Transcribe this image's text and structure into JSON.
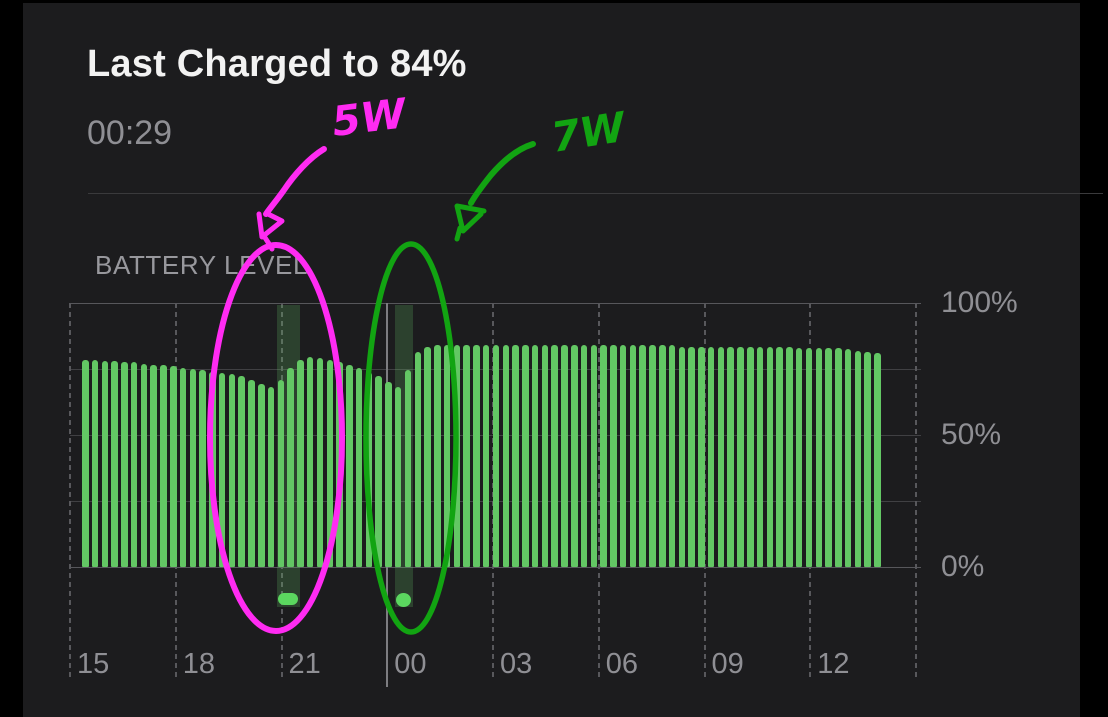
{
  "header": {
    "title": "Last Charged to 84%",
    "subtitle": "00:29"
  },
  "chart_data": {
    "type": "bar",
    "title": "BATTERY LEVEL",
    "unit": "%",
    "ylim": [
      0,
      100
    ],
    "grid": "on",
    "y_axis_labels": [
      "100%",
      "50%",
      "0%"
    ],
    "y_axis_values": [
      100,
      50,
      0
    ],
    "y_gridline_values": [
      100,
      75,
      50,
      25,
      0
    ],
    "x_axis_labels": [
      "15",
      "18",
      "21",
      "00",
      "03",
      "06",
      "09",
      "12"
    ],
    "x_start_hour": 15,
    "hours_span": 24,
    "bar_interval_minutes": 17,
    "values": [
      78.5,
      78.5,
      78,
      78,
      77.5,
      77.5,
      77,
      76.5,
      76.5,
      76,
      75.5,
      75,
      74.5,
      74,
      73.5,
      73,
      72.5,
      71,
      69.5,
      68,
      71,
      75.5,
      78.5,
      79.5,
      79,
      78.5,
      77.5,
      76.5,
      75.5,
      74,
      72.5,
      70,
      68,
      74.5,
      81.5,
      83.5,
      84,
      84,
      84,
      84,
      84,
      84,
      84,
      84,
      84,
      84,
      84,
      84,
      84,
      84,
      84,
      84,
      84,
      84,
      84,
      84,
      84,
      84,
      84,
      84,
      84,
      83.5,
      83.5,
      83.5,
      83.5,
      83.5,
      83.5,
      83.5,
      83.5,
      83.5,
      83.5,
      83.5,
      83.5,
      83,
      83,
      83,
      83,
      83,
      82.5,
      82,
      81.5,
      81
    ],
    "charging_sessions": [
      {
        "start": "20:52",
        "end": "21:32",
        "marker": "pill"
      },
      {
        "start": "00:13",
        "end": "00:43",
        "marker": "dot"
      }
    ]
  },
  "annotations": [
    {
      "label": "5W",
      "color": "#ff2bf2"
    },
    {
      "label": "7W",
      "color": "#12a412"
    }
  ],
  "colors": {
    "background": "#1c1c1e",
    "frame": "#000000",
    "title_text": "#f2f2f2",
    "secondary_text": "#8f8f94",
    "bar": "#63c764",
    "charging_band": "rgba(105,200,105,0.22)",
    "charging_marker": "#5bd75f"
  }
}
